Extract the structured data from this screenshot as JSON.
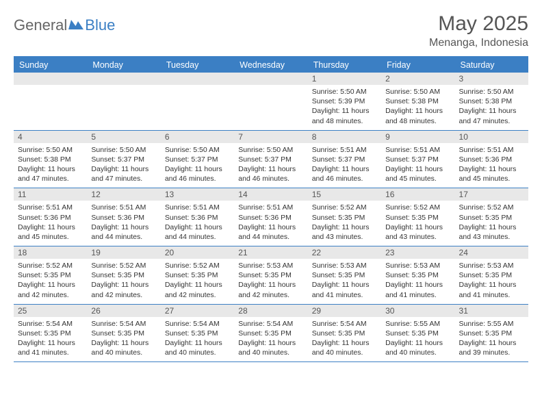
{
  "logo": {
    "general": "General",
    "blue": "Blue"
  },
  "title": "May 2025",
  "location": "Menanga, Indonesia",
  "colors": {
    "header_bg": "#3b7fc4",
    "header_text": "#ffffff",
    "daynum_bg": "#e8e8e8",
    "daynum_text": "#555555",
    "info_text": "#333333",
    "title_text": "#555555",
    "border": "#3b7fc4"
  },
  "day_headers": [
    "Sunday",
    "Monday",
    "Tuesday",
    "Wednesday",
    "Thursday",
    "Friday",
    "Saturday"
  ],
  "weeks": [
    [
      {
        "day": "",
        "sunrise": "",
        "sunset": "",
        "daylight": ""
      },
      {
        "day": "",
        "sunrise": "",
        "sunset": "",
        "daylight": ""
      },
      {
        "day": "",
        "sunrise": "",
        "sunset": "",
        "daylight": ""
      },
      {
        "day": "",
        "sunrise": "",
        "sunset": "",
        "daylight": ""
      },
      {
        "day": "1",
        "sunrise": "Sunrise: 5:50 AM",
        "sunset": "Sunset: 5:39 PM",
        "daylight": "Daylight: 11 hours and 48 minutes."
      },
      {
        "day": "2",
        "sunrise": "Sunrise: 5:50 AM",
        "sunset": "Sunset: 5:38 PM",
        "daylight": "Daylight: 11 hours and 48 minutes."
      },
      {
        "day": "3",
        "sunrise": "Sunrise: 5:50 AM",
        "sunset": "Sunset: 5:38 PM",
        "daylight": "Daylight: 11 hours and 47 minutes."
      }
    ],
    [
      {
        "day": "4",
        "sunrise": "Sunrise: 5:50 AM",
        "sunset": "Sunset: 5:38 PM",
        "daylight": "Daylight: 11 hours and 47 minutes."
      },
      {
        "day": "5",
        "sunrise": "Sunrise: 5:50 AM",
        "sunset": "Sunset: 5:37 PM",
        "daylight": "Daylight: 11 hours and 47 minutes."
      },
      {
        "day": "6",
        "sunrise": "Sunrise: 5:50 AM",
        "sunset": "Sunset: 5:37 PM",
        "daylight": "Daylight: 11 hours and 46 minutes."
      },
      {
        "day": "7",
        "sunrise": "Sunrise: 5:50 AM",
        "sunset": "Sunset: 5:37 PM",
        "daylight": "Daylight: 11 hours and 46 minutes."
      },
      {
        "day": "8",
        "sunrise": "Sunrise: 5:51 AM",
        "sunset": "Sunset: 5:37 PM",
        "daylight": "Daylight: 11 hours and 46 minutes."
      },
      {
        "day": "9",
        "sunrise": "Sunrise: 5:51 AM",
        "sunset": "Sunset: 5:37 PM",
        "daylight": "Daylight: 11 hours and 45 minutes."
      },
      {
        "day": "10",
        "sunrise": "Sunrise: 5:51 AM",
        "sunset": "Sunset: 5:36 PM",
        "daylight": "Daylight: 11 hours and 45 minutes."
      }
    ],
    [
      {
        "day": "11",
        "sunrise": "Sunrise: 5:51 AM",
        "sunset": "Sunset: 5:36 PM",
        "daylight": "Daylight: 11 hours and 45 minutes."
      },
      {
        "day": "12",
        "sunrise": "Sunrise: 5:51 AM",
        "sunset": "Sunset: 5:36 PM",
        "daylight": "Daylight: 11 hours and 44 minutes."
      },
      {
        "day": "13",
        "sunrise": "Sunrise: 5:51 AM",
        "sunset": "Sunset: 5:36 PM",
        "daylight": "Daylight: 11 hours and 44 minutes."
      },
      {
        "day": "14",
        "sunrise": "Sunrise: 5:51 AM",
        "sunset": "Sunset: 5:36 PM",
        "daylight": "Daylight: 11 hours and 44 minutes."
      },
      {
        "day": "15",
        "sunrise": "Sunrise: 5:52 AM",
        "sunset": "Sunset: 5:35 PM",
        "daylight": "Daylight: 11 hours and 43 minutes."
      },
      {
        "day": "16",
        "sunrise": "Sunrise: 5:52 AM",
        "sunset": "Sunset: 5:35 PM",
        "daylight": "Daylight: 11 hours and 43 minutes."
      },
      {
        "day": "17",
        "sunrise": "Sunrise: 5:52 AM",
        "sunset": "Sunset: 5:35 PM",
        "daylight": "Daylight: 11 hours and 43 minutes."
      }
    ],
    [
      {
        "day": "18",
        "sunrise": "Sunrise: 5:52 AM",
        "sunset": "Sunset: 5:35 PM",
        "daylight": "Daylight: 11 hours and 42 minutes."
      },
      {
        "day": "19",
        "sunrise": "Sunrise: 5:52 AM",
        "sunset": "Sunset: 5:35 PM",
        "daylight": "Daylight: 11 hours and 42 minutes."
      },
      {
        "day": "20",
        "sunrise": "Sunrise: 5:52 AM",
        "sunset": "Sunset: 5:35 PM",
        "daylight": "Daylight: 11 hours and 42 minutes."
      },
      {
        "day": "21",
        "sunrise": "Sunrise: 5:53 AM",
        "sunset": "Sunset: 5:35 PM",
        "daylight": "Daylight: 11 hours and 42 minutes."
      },
      {
        "day": "22",
        "sunrise": "Sunrise: 5:53 AM",
        "sunset": "Sunset: 5:35 PM",
        "daylight": "Daylight: 11 hours and 41 minutes."
      },
      {
        "day": "23",
        "sunrise": "Sunrise: 5:53 AM",
        "sunset": "Sunset: 5:35 PM",
        "daylight": "Daylight: 11 hours and 41 minutes."
      },
      {
        "day": "24",
        "sunrise": "Sunrise: 5:53 AM",
        "sunset": "Sunset: 5:35 PM",
        "daylight": "Daylight: 11 hours and 41 minutes."
      }
    ],
    [
      {
        "day": "25",
        "sunrise": "Sunrise: 5:54 AM",
        "sunset": "Sunset: 5:35 PM",
        "daylight": "Daylight: 11 hours and 41 minutes."
      },
      {
        "day": "26",
        "sunrise": "Sunrise: 5:54 AM",
        "sunset": "Sunset: 5:35 PM",
        "daylight": "Daylight: 11 hours and 40 minutes."
      },
      {
        "day": "27",
        "sunrise": "Sunrise: 5:54 AM",
        "sunset": "Sunset: 5:35 PM",
        "daylight": "Daylight: 11 hours and 40 minutes."
      },
      {
        "day": "28",
        "sunrise": "Sunrise: 5:54 AM",
        "sunset": "Sunset: 5:35 PM",
        "daylight": "Daylight: 11 hours and 40 minutes."
      },
      {
        "day": "29",
        "sunrise": "Sunrise: 5:54 AM",
        "sunset": "Sunset: 5:35 PM",
        "daylight": "Daylight: 11 hours and 40 minutes."
      },
      {
        "day": "30",
        "sunrise": "Sunrise: 5:55 AM",
        "sunset": "Sunset: 5:35 PM",
        "daylight": "Daylight: 11 hours and 40 minutes."
      },
      {
        "day": "31",
        "sunrise": "Sunrise: 5:55 AM",
        "sunset": "Sunset: 5:35 PM",
        "daylight": "Daylight: 11 hours and 39 minutes."
      }
    ]
  ]
}
